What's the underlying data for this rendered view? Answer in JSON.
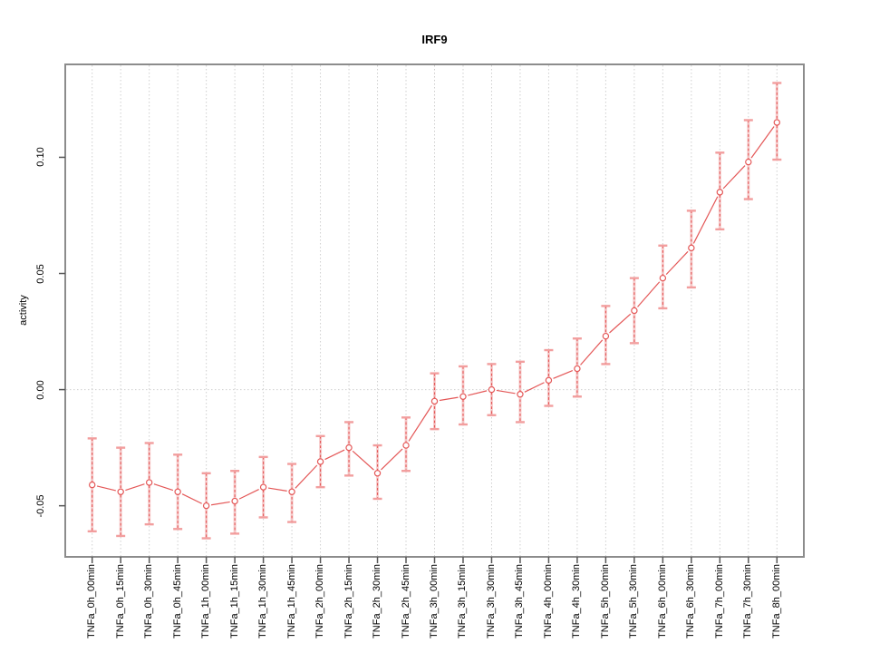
{
  "title": "IRF9",
  "chart_data": {
    "type": "line",
    "title": "IRF9",
    "xlabel": "",
    "ylabel": "activity",
    "categories": [
      "TNFa_0h_00min",
      "TNFa_0h_15min",
      "TNFa_0h_30min",
      "TNFa_0h_45min",
      "TNFa_1h_00min",
      "TNFa_1h_15min",
      "TNFa_1h_30min",
      "TNFa_1h_45min",
      "TNFa_2h_00min",
      "TNFa_2h_15min",
      "TNFa_2h_30min",
      "TNFa_2h_45min",
      "TNFa_3h_00min",
      "TNFa_3h_15min",
      "TNFa_3h_30min",
      "TNFa_3h_45min",
      "TNFa_4h_00min",
      "TNFa_4h_30min",
      "TNFa_5h_00min",
      "TNFa_5h_30min",
      "TNFa_6h_00min",
      "TNFa_6h_30min",
      "TNFa_7h_00min",
      "TNFa_7h_30min",
      "TNFa_8h_00min"
    ],
    "series": [
      {
        "name": "activity",
        "values": [
          -0.041,
          -0.044,
          -0.04,
          -0.044,
          -0.05,
          -0.048,
          -0.042,
          -0.044,
          -0.031,
          -0.025,
          -0.036,
          -0.024,
          -0.005,
          -0.003,
          0.0,
          -0.002,
          0.004,
          0.009,
          0.023,
          0.034,
          0.048,
          0.061,
          0.085,
          0.098,
          0.115
        ]
      }
    ],
    "error_low": [
      -0.061,
      -0.063,
      -0.058,
      -0.06,
      -0.064,
      -0.062,
      -0.055,
      -0.057,
      -0.042,
      -0.037,
      -0.047,
      -0.035,
      -0.017,
      -0.015,
      -0.011,
      -0.014,
      -0.007,
      -0.003,
      0.011,
      0.02,
      0.035,
      0.044,
      0.069,
      0.082,
      0.099
    ],
    "error_high": [
      -0.021,
      -0.025,
      -0.023,
      -0.028,
      -0.036,
      -0.035,
      -0.029,
      -0.032,
      -0.02,
      -0.014,
      -0.024,
      -0.012,
      0.007,
      0.01,
      0.011,
      0.012,
      0.017,
      0.022,
      0.036,
      0.048,
      0.062,
      0.077,
      0.102,
      0.116,
      0.132
    ],
    "y_ticks": [
      -0.05,
      0.0,
      0.05,
      0.1
    ],
    "ylim": [
      -0.072,
      0.14
    ],
    "legend": "none",
    "grid": {
      "vertical_dotted_per_category": true,
      "horizontal_dotted_at_zero": true
    },
    "point_style": "open-circle",
    "x_labels_rotated_90": true,
    "colors": {
      "line": "#e45757",
      "errorbar_fill": "#f29e9e",
      "grid": "#cfcfcf",
      "box": "#8c8c8c",
      "tick": "#555555",
      "text": "#000000"
    }
  }
}
